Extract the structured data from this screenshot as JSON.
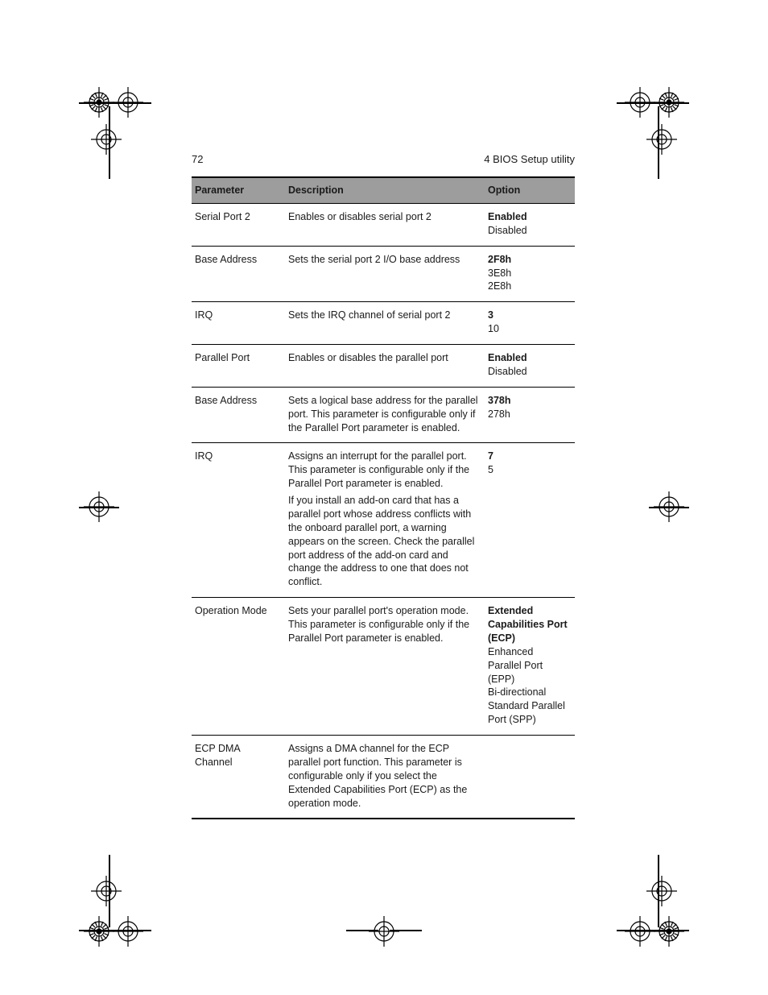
{
  "header": {
    "page_number": "72",
    "section_title": "4 BIOS Setup utility"
  },
  "table": {
    "header_bg": "#9d9d9d",
    "columns": [
      "Parameter",
      "Description",
      "Option"
    ],
    "rows": [
      {
        "parameter": "Serial Port 2",
        "description": [
          "Enables or disables serial port 2"
        ],
        "options": [
          {
            "text": "Enabled",
            "bold": true
          },
          {
            "text": "Disabled",
            "bold": false
          }
        ]
      },
      {
        "parameter": "Base Address",
        "description": [
          "Sets the serial port 2 I/O base address"
        ],
        "options": [
          {
            "text": "2F8h",
            "bold": true
          },
          {
            "text": "3E8h",
            "bold": false
          },
          {
            "text": "2E8h",
            "bold": false
          }
        ]
      },
      {
        "parameter": "IRQ",
        "description": [
          "Sets the IRQ channel of serial port 2"
        ],
        "options": [
          {
            "text": "3",
            "bold": true
          },
          {
            "text": "10",
            "bold": false
          }
        ]
      },
      {
        "parameter": "Parallel Port",
        "description": [
          "Enables or disables the parallel port"
        ],
        "options": [
          {
            "text": "Enabled",
            "bold": true
          },
          {
            "text": "Disabled",
            "bold": false
          }
        ]
      },
      {
        "parameter": "Base Address",
        "description": [
          "Sets a logical base address for the parallel port.  This parameter is configurable only if the Parallel Port parameter is enabled."
        ],
        "options": [
          {
            "text": "378h",
            "bold": true
          },
          {
            "text": "278h",
            "bold": false
          }
        ]
      },
      {
        "parameter": "IRQ",
        "description": [
          "Assigns an interrupt for the parallel port.  This parameter is configurable only if the Parallel Port parameter is enabled.",
          "If you install an add-on card that has a parallel port whose address conflicts with the onboard parallel port, a warning appears on the screen.  Check the parallel port address of the add-on card and change the address to one that does not conflict."
        ],
        "options": [
          {
            "text": "7",
            "bold": true
          },
          {
            "text": "5",
            "bold": false
          }
        ]
      },
      {
        "parameter": "Operation Mode",
        "description": [
          "Sets your parallel port's operation mode.  This parameter is configurable only if the Parallel Port parameter is enabled."
        ],
        "options": [
          {
            "text": "Extended Capabilities Port (ECP)",
            "bold": true
          },
          {
            "text": "Enhanced Parallel Port (EPP)",
            "bold": false
          },
          {
            "text": "Bi-directional",
            "bold": false
          },
          {
            "text": "Standard Parallel Port (SPP)",
            "bold": false
          }
        ]
      },
      {
        "parameter": "ECP DMA Channel",
        "description": [
          "Assigns a DMA channel for the ECP parallel port function.  This parameter is configurable only if you select the Extended Capabilities Port (ECP) as the operation mode."
        ],
        "options": []
      }
    ]
  }
}
